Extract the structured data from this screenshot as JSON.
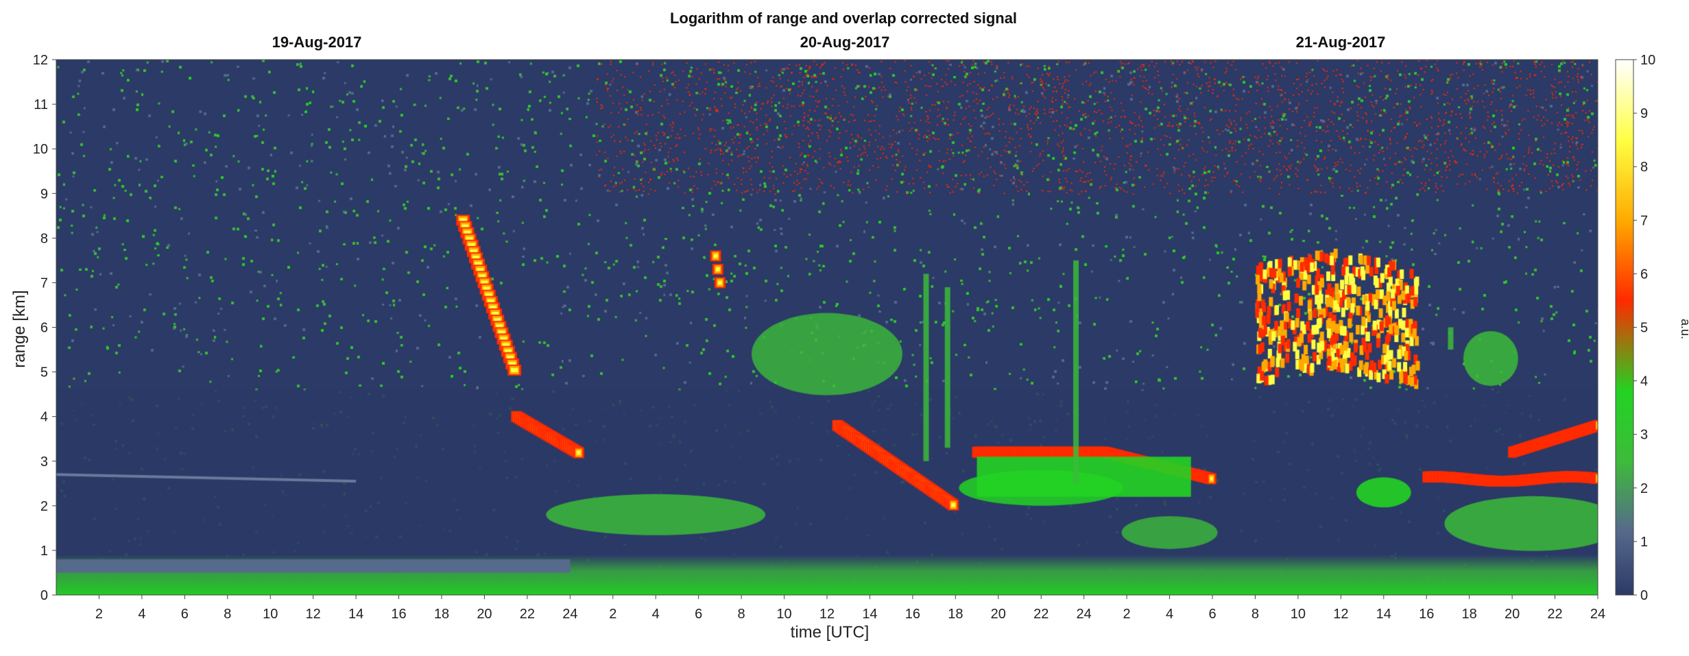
{
  "chart_data": {
    "type": "heatmap",
    "title": "Logarithm of range and overlap corrected signal",
    "date_labels": [
      "19-Aug-2017",
      "20-Aug-2017",
      "21-Aug-2017"
    ],
    "xlabel": "time [UTC]",
    "ylabel": "range [km]",
    "colorbar_label": "a.u.",
    "x_days": 3,
    "x_range_hours": [
      0,
      72
    ],
    "x_tick_labels": [
      "2",
      "4",
      "6",
      "8",
      "10",
      "12",
      "14",
      "16",
      "18",
      "20",
      "22",
      "24",
      "2",
      "4",
      "6",
      "8",
      "10",
      "12",
      "14",
      "16",
      "18",
      "20",
      "22",
      "24",
      "2",
      "4",
      "6",
      "8",
      "10",
      "12",
      "14",
      "16",
      "18",
      "20",
      "22",
      "24"
    ],
    "x_tick_hours": [
      2,
      4,
      6,
      8,
      10,
      12,
      14,
      16,
      18,
      20,
      22,
      24,
      26,
      28,
      30,
      32,
      34,
      36,
      38,
      40,
      42,
      44,
      46,
      48,
      50,
      52,
      54,
      56,
      58,
      60,
      62,
      64,
      66,
      68,
      70,
      72
    ],
    "ylim": [
      0,
      12
    ],
    "y_ticks": [
      0,
      1,
      2,
      3,
      4,
      5,
      6,
      7,
      8,
      9,
      10,
      11,
      12
    ],
    "colorbar_range": [
      0,
      10
    ],
    "colorbar_ticks": [
      0,
      1,
      2,
      3,
      4,
      5,
      6,
      7,
      8,
      9,
      10
    ],
    "colormap": [
      "#2b3a66",
      "#566a8c",
      "#3dbb3a",
      "#22d322",
      "#ff2a00",
      "#ffaa00",
      "#ffff44",
      "#ffffff"
    ],
    "features": [
      {
        "name": "boundary layer",
        "t_start": 0,
        "t_end": 72,
        "z_km": 0.4,
        "level": 2.6
      },
      {
        "name": "residual layer day 1",
        "t_start": 0,
        "t_end": 14,
        "z_km": 2.6,
        "level": 1.3
      },
      {
        "name": "descending cloud day 1",
        "t_start": 19,
        "t_end": 25,
        "z_km_start": 8.5,
        "z_km_end": 3.0,
        "level": 7
      },
      {
        "name": "aerosol layer day 2",
        "t_start": 24,
        "t_end": 32,
        "z_km": 2.0,
        "level": 2.5
      },
      {
        "name": "descending cloud day 2",
        "t_start": 30,
        "t_end": 43,
        "z_km_start": 7.5,
        "z_km_end": 1.9,
        "level": 6
      },
      {
        "name": "cloud deck day 2-3",
        "t_start": 43,
        "t_end": 53,
        "z_km": 3.2,
        "level": 8
      },
      {
        "name": "mid-level cloud day 3",
        "t_start": 54,
        "t_end": 63,
        "z_km": 6.0,
        "level": 7.5
      },
      {
        "name": "low cloud day 3",
        "t_start": 65,
        "t_end": 72,
        "z_km": 2.6,
        "level": 7
      }
    ]
  }
}
